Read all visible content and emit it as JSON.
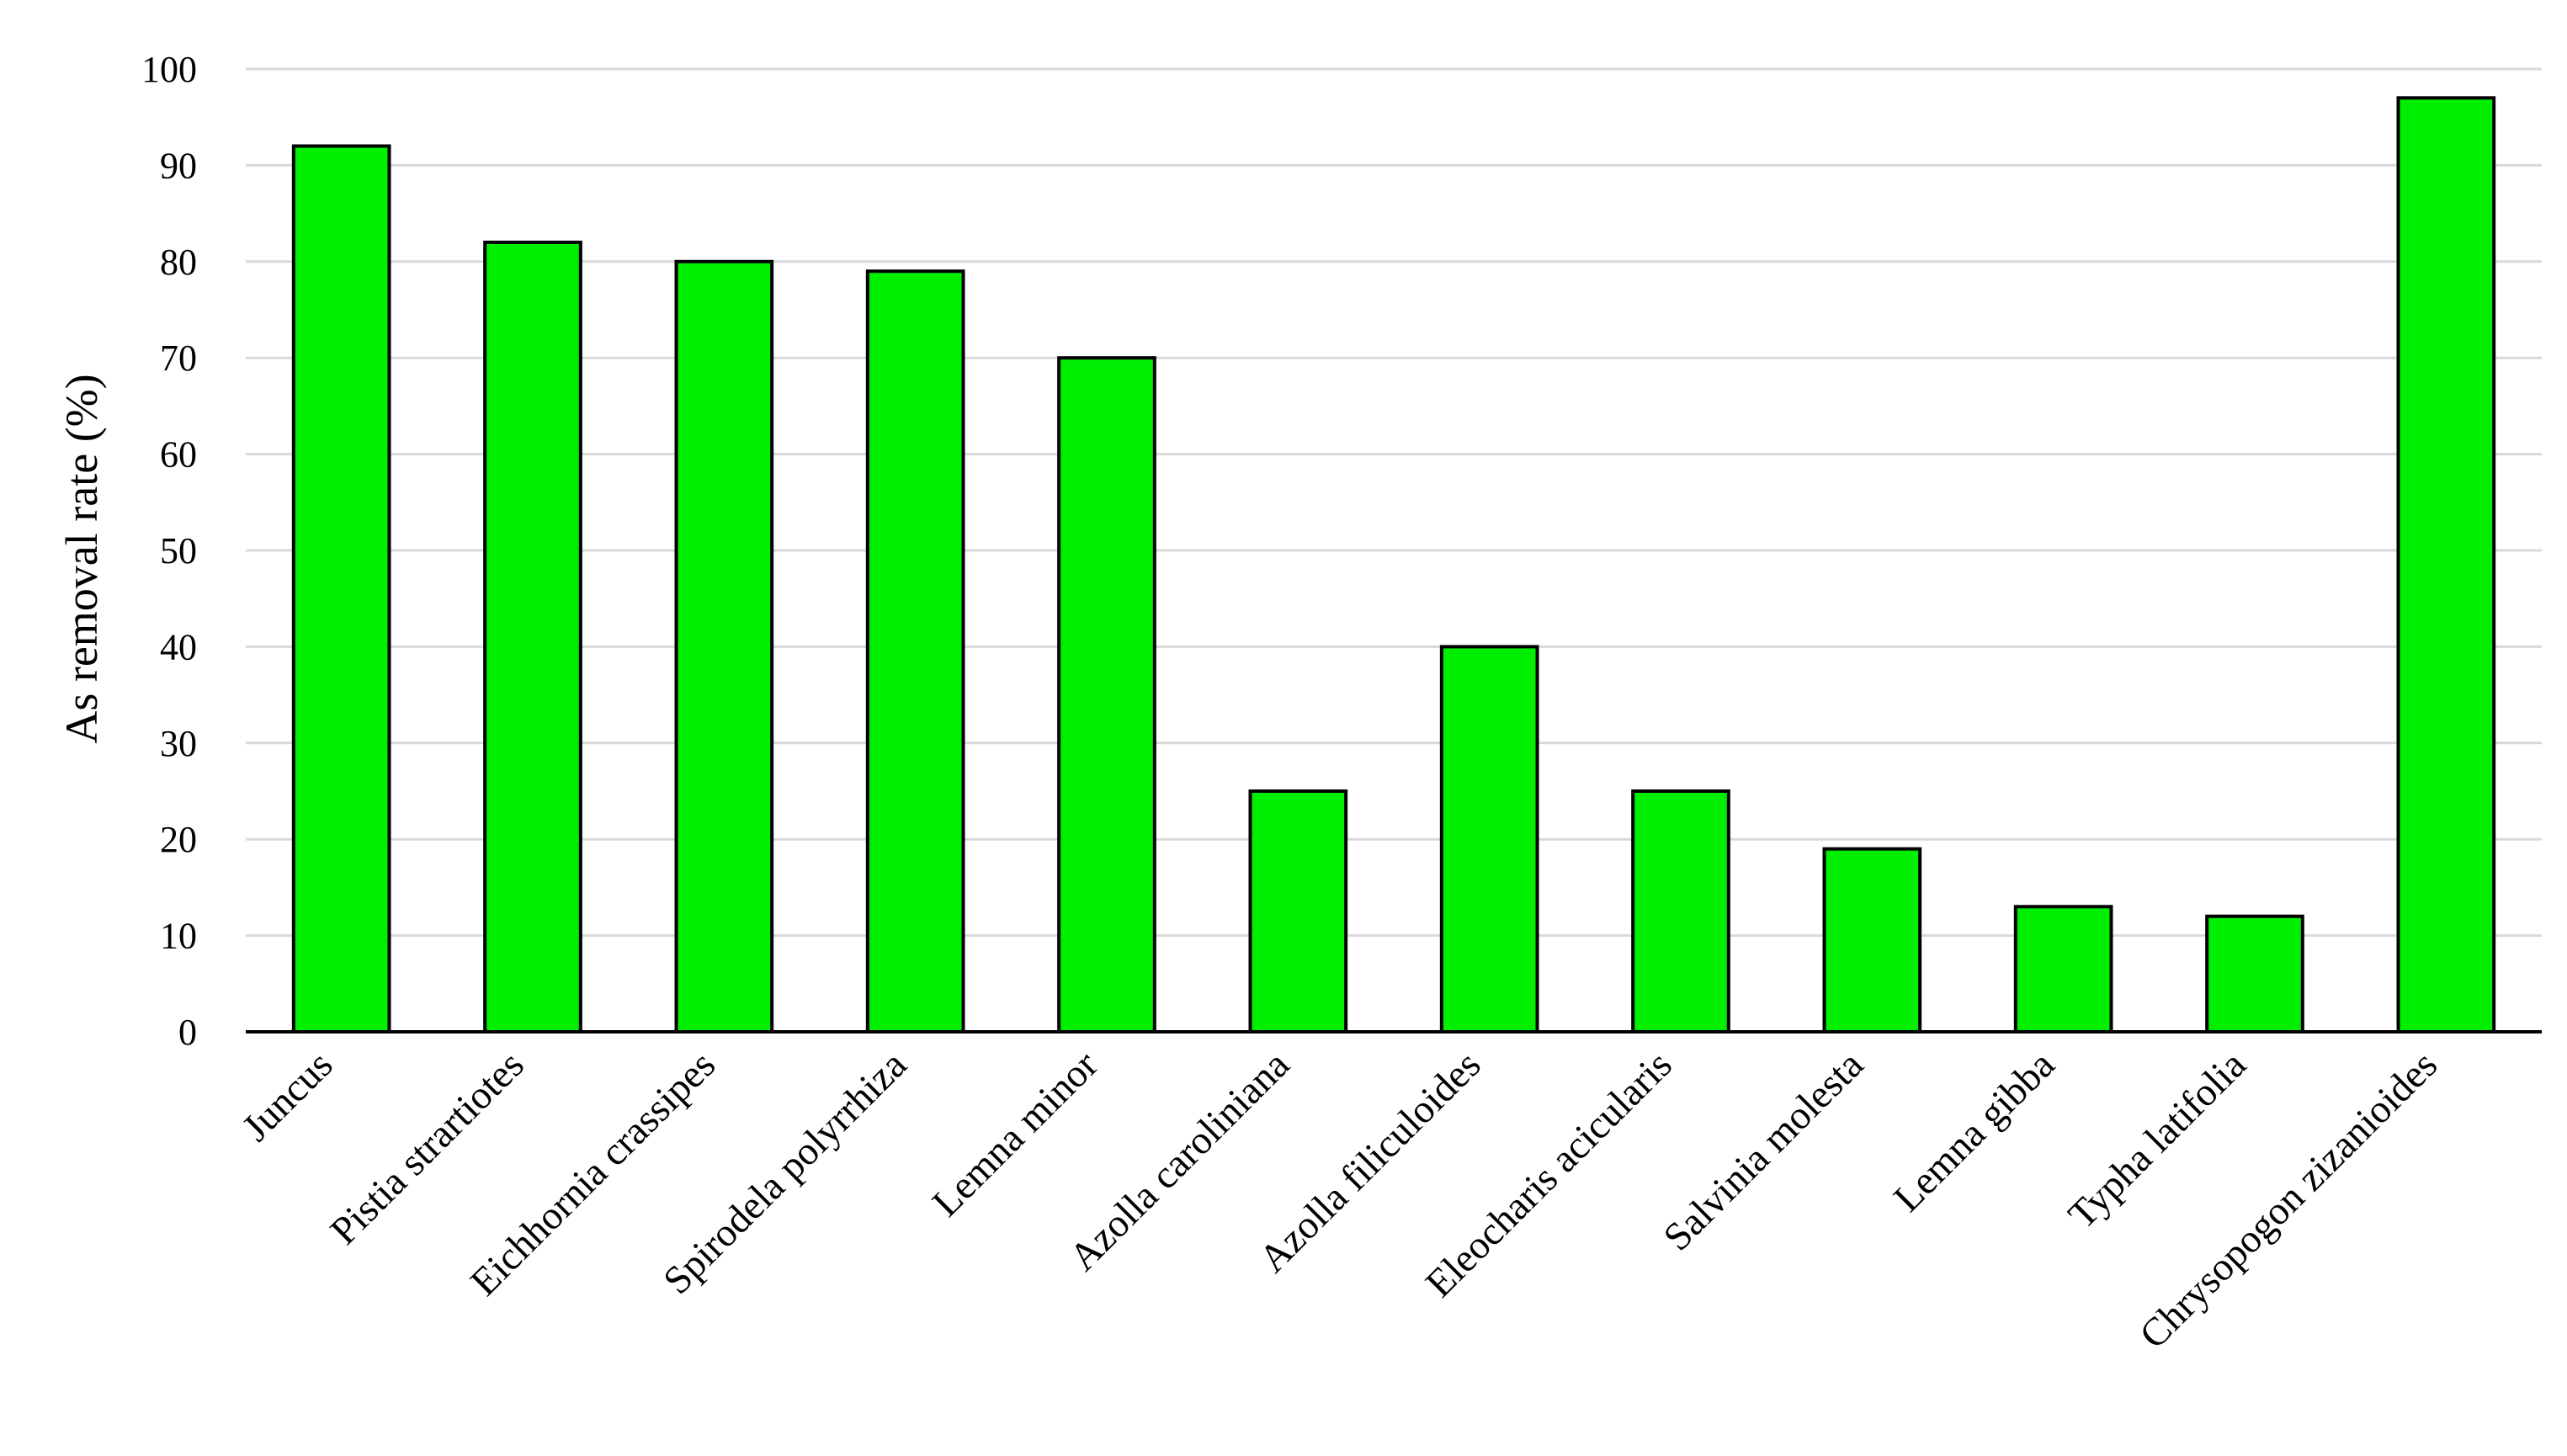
{
  "chart_data": {
    "type": "bar",
    "title": "",
    "xlabel": "",
    "ylabel": "As removal rate (%)",
    "ylim": [
      0,
      100
    ],
    "yticks": [
      0,
      10,
      20,
      30,
      40,
      50,
      60,
      70,
      80,
      90,
      100
    ],
    "grid": true,
    "legend": "none",
    "categories": [
      "Juncus",
      "Pistia strartiotes",
      "Eichhornia crassipes",
      "Spirodela polyrrhiza",
      "Lemna minor",
      "Azolla caroliniana",
      "Azolla filiculoides",
      "Eleocharis acicularis",
      "Salvinia molesta",
      "Lemna gibba",
      "Typha latifolia",
      "Chrysopogon zizanioides"
    ],
    "values": [
      92,
      82,
      80,
      79,
      70,
      25,
      40,
      25,
      19,
      13,
      12,
      97
    ],
    "colors": {
      "bar_fill": "#00ee00",
      "bar_stroke": "#000000",
      "grid": "#d9d9d9",
      "axis": "#000000"
    }
  }
}
